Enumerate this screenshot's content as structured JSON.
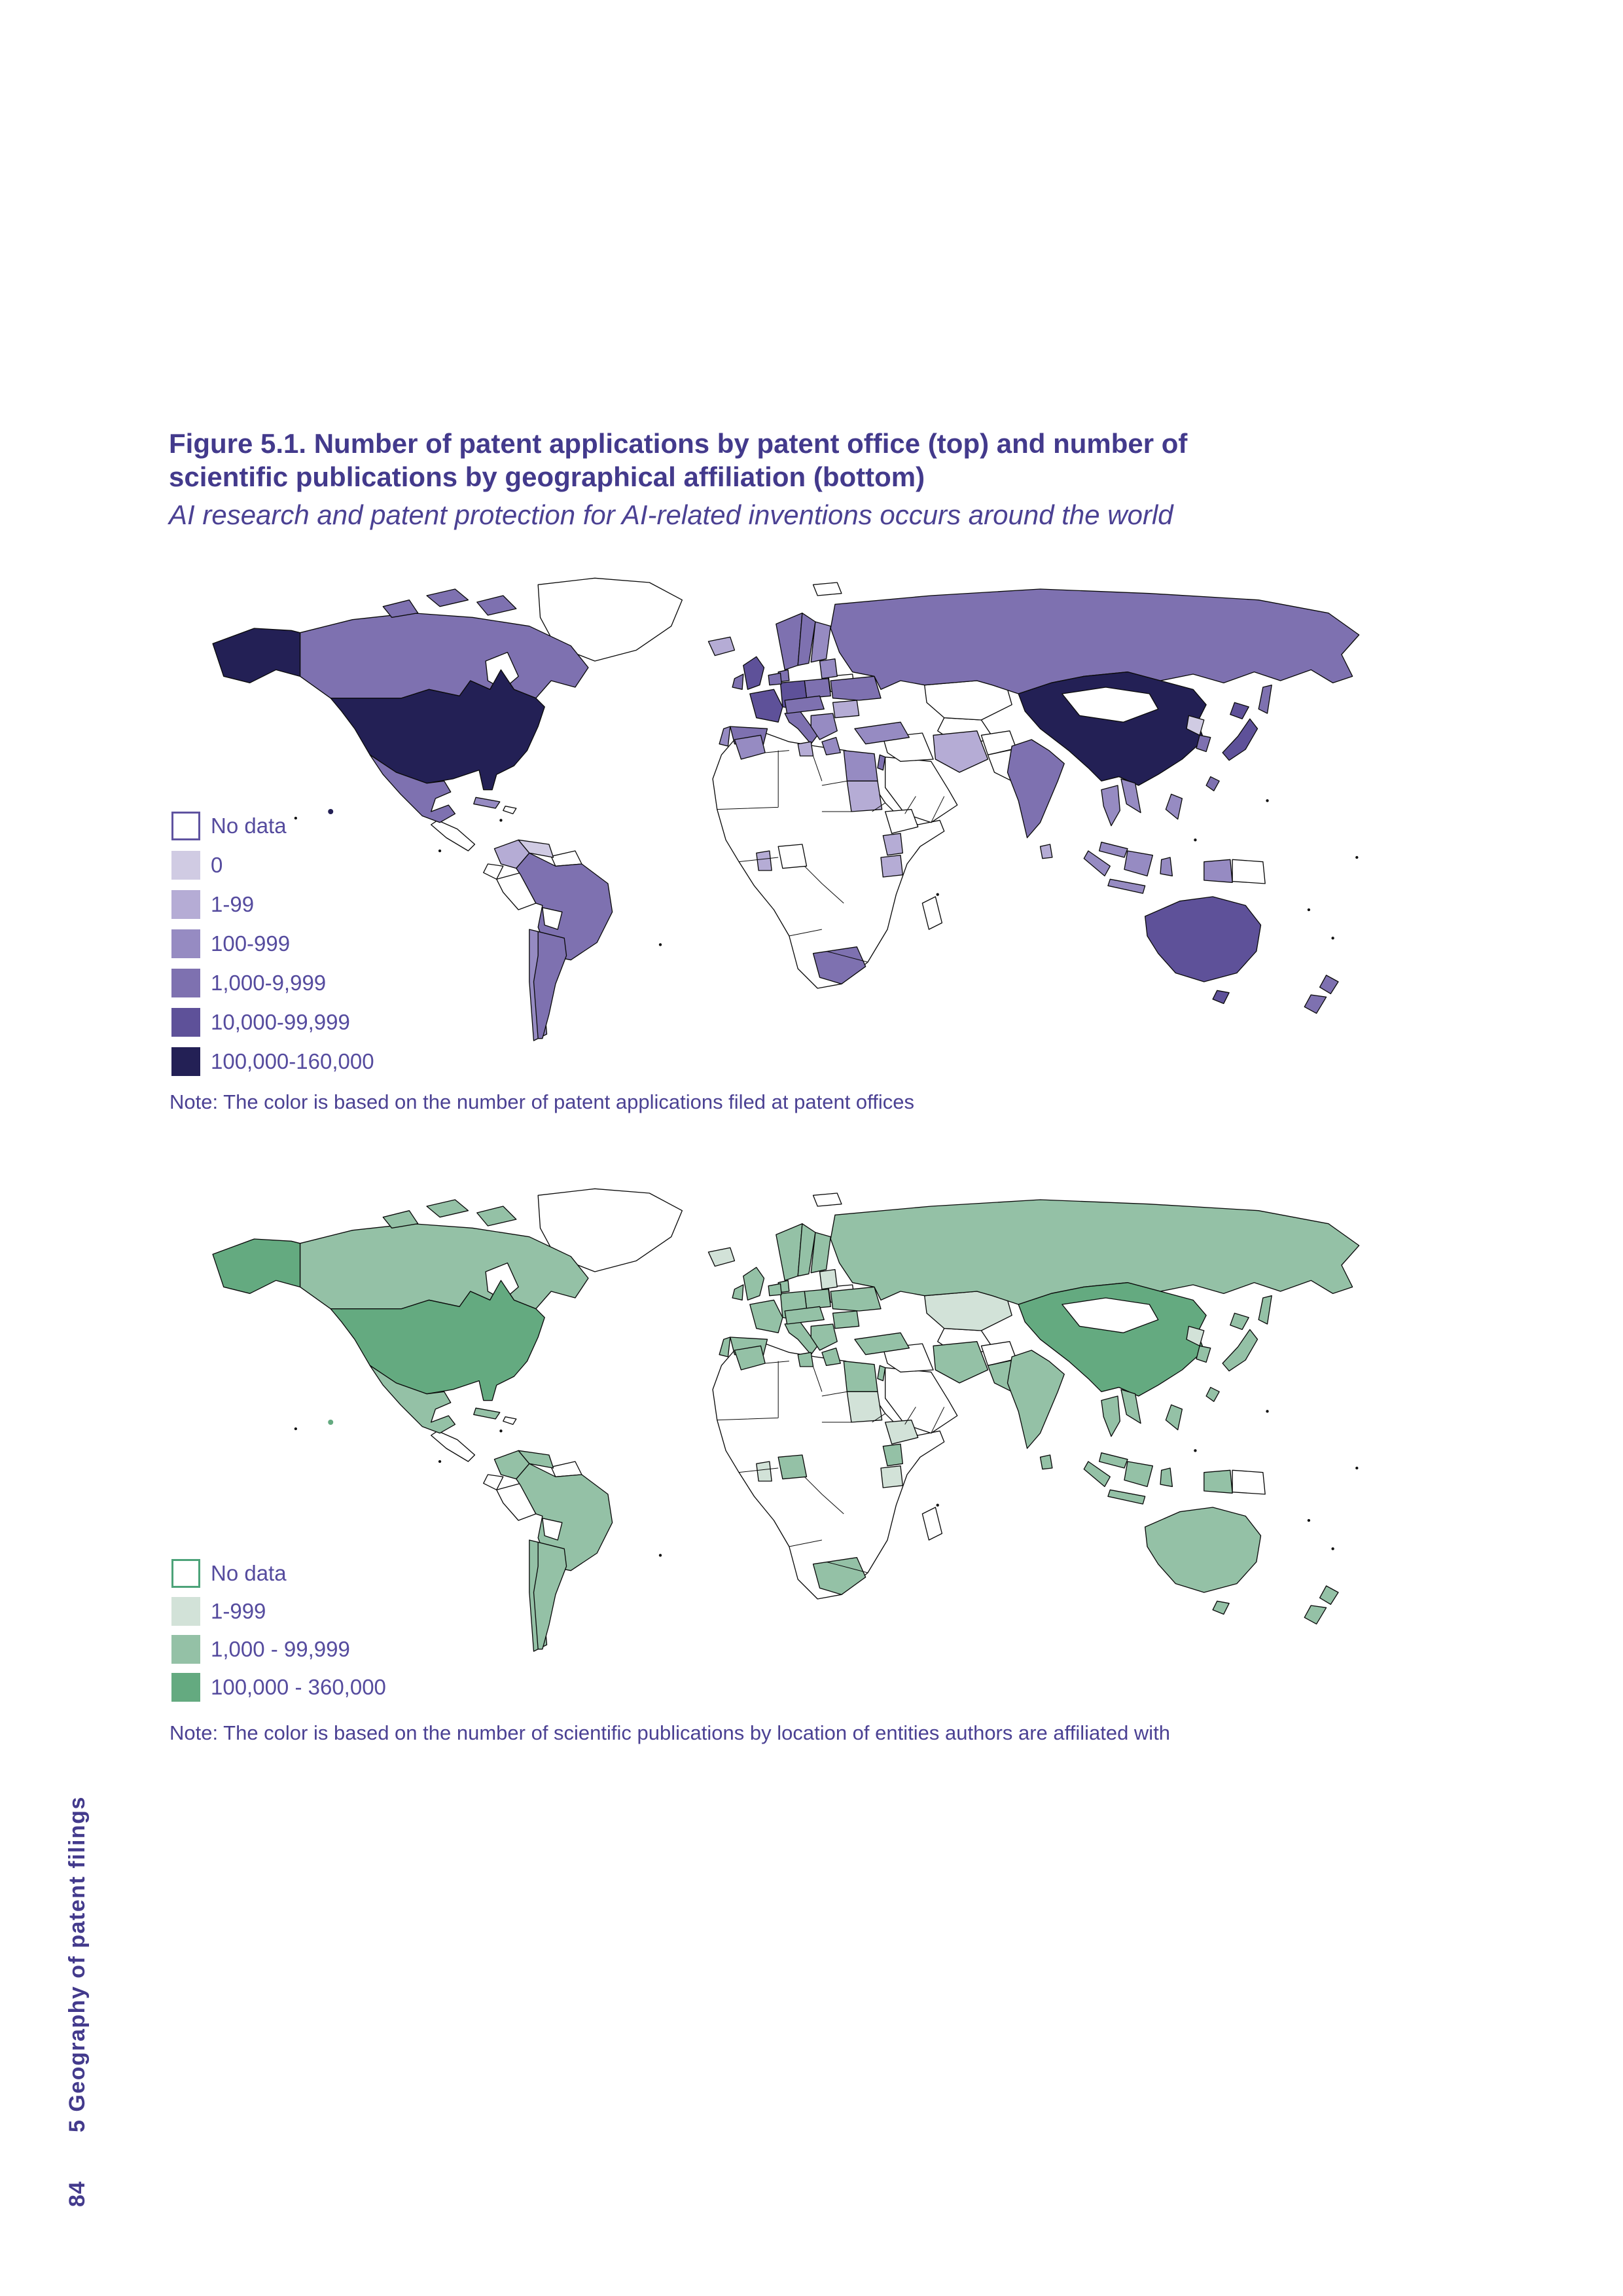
{
  "page": {
    "title": "Figure 5.1. Number of patent applications by patent office (top) and number of scientific publications by geographical affiliation (bottom)",
    "subtitle": "AI research and patent protection for AI-related inventions occurs around the world",
    "sidebar_label": "5 Geography of patent filings",
    "page_number": "84"
  },
  "chart_data": [
    {
      "type": "choropleth",
      "title": "Number of patent applications by patent office (top)",
      "note": "Note: The color is based on the number of patent applications filed at patent offices",
      "legend_position": "bottom-left",
      "legend": [
        {
          "label": "No data",
          "color": "#ffffff",
          "border": "#5f53a0"
        },
        {
          "label": "0",
          "color": "#d0cbe3"
        },
        {
          "label": "1-99",
          "color": "#b5acd5"
        },
        {
          "label": "100-999",
          "color": "#968bc2"
        },
        {
          "label": "1,000-9,999",
          "color": "#7e71b0"
        },
        {
          "label": "10,000-99,999",
          "color": "#5e5199"
        },
        {
          "label": "100,000-160,000",
          "color": "#232055"
        }
      ],
      "regions": {
        "usa": "100,000-160,000",
        "china": "100,000-160,000",
        "germany": "10,000-99,999",
        "uk": "10,000-99,999",
        "france": "10,000-99,999",
        "japan": "10,000-99,999",
        "australia": "10,000-99,999",
        "canada": "1,000-9,999",
        "russia": "1,000-9,999",
        "mexico": "1,000-9,999",
        "brazil": "1,000-9,999",
        "argentina": "1,000-9,999",
        "india": "1,000-9,999",
        "south-korea": "1,000-9,999",
        "south-africa": "1,000-9,999",
        "spain": "1,000-9,999",
        "italy": "1,000-9,999",
        "netherlands": "1,000-9,999",
        "sweden": "1,000-9,999",
        "norway": "1,000-9,999",
        "denmark": "1,000-9,999",
        "central-europe": "1,000-9,999",
        "poland": "1,000-9,999",
        "ukraine": "1,000-9,999",
        "israel": "1,000-9,999",
        "new-zealand": "1,000-9,999",
        "taiwan": "1,000-9,999",
        "ireland": "1,000-9,999",
        "turkey": "100-999",
        "chile": "100-999",
        "morocco": "100-999",
        "egypt": "100-999",
        "finland": "100-999",
        "portugal": "100-999",
        "greece": "100-999",
        "balkans": "100-999",
        "baltics": "100-999",
        "thailand": "100-999",
        "vietnam": "100-999",
        "malaysia": "100-999",
        "indonesia": "100-999",
        "philippines": "100-999",
        "cuba": "100-999",
        "iceland": "1-99",
        "colombia": "1-99",
        "sudan": "1-99",
        "kenya": "1-99",
        "tanzania": "1-99",
        "ghana": "1-99",
        "sri-lanka": "1-99",
        "tunisia": "1-99",
        "iran": "1-99",
        "romania": "1-99",
        "venezuela": "0",
        "north-korea": "0"
      }
    },
    {
      "type": "choropleth",
      "title": "Number of scientific publications by geographical affiliation (bottom)",
      "note": "Note: The color is based on the number of scientific publications by location of entities authors are affiliated with",
      "legend_position": "bottom-left",
      "legend": [
        {
          "label": "No data",
          "color": "#ffffff",
          "border": "#4da379"
        },
        {
          "label": "1-999",
          "color": "#d2e2d8"
        },
        {
          "label": "1,000 - 99,999",
          "color": "#94c1a6"
        },
        {
          "label": "100,000 - 360,000",
          "color": "#64aa80"
        }
      ],
      "regions": {
        "usa": "100,000 - 360,000",
        "china": "100,000 - 360,000",
        "canada": "1,000 - 99,999",
        "russia": "1,000 - 99,999",
        "mexico": "1,000 - 99,999",
        "brazil": "1,000 - 99,999",
        "argentina": "1,000 - 99,999",
        "chile": "1,000 - 99,999",
        "colombia": "1,000 - 99,999",
        "venezuela": "1,000 - 99,999",
        "cuba": "1,000 - 99,999",
        "uk": "1,000 - 99,999",
        "ireland": "1,000 - 99,999",
        "france": "1,000 - 99,999",
        "spain": "1,000 - 99,999",
        "portugal": "1,000 - 99,999",
        "germany": "1,000 - 99,999",
        "italy": "1,000 - 99,999",
        "netherlands": "1,000 - 99,999",
        "sweden": "1,000 - 99,999",
        "norway": "1,000 - 99,999",
        "denmark": "1,000 - 99,999",
        "finland": "1,000 - 99,999",
        "central-europe": "1,000 - 99,999",
        "poland": "1,000 - 99,999",
        "ukraine": "1,000 - 99,999",
        "balkans": "1,000 - 99,999",
        "greece": "1,000 - 99,999",
        "romania": "1,000 - 99,999",
        "turkey": "1,000 - 99,999",
        "iran": "1,000 - 99,999",
        "israel": "1,000 - 99,999",
        "egypt": "1,000 - 99,999",
        "morocco": "1,000 - 99,999",
        "tunisia": "1,000 - 99,999",
        "south-africa": "1,000 - 99,999",
        "nigeria": "1,000 - 99,999",
        "kenya": "1,000 - 99,999",
        "india": "1,000 - 99,999",
        "pakistan": "1,000 - 99,999",
        "sri-lanka": "1,000 - 99,999",
        "thailand": "1,000 - 99,999",
        "vietnam": "1,000 - 99,999",
        "malaysia": "1,000 - 99,999",
        "indonesia": "1,000 - 99,999",
        "philippines": "1,000 - 99,999",
        "japan": "1,000 - 99,999",
        "south-korea": "1,000 - 99,999",
        "taiwan": "1,000 - 99,999",
        "australia": "1,000 - 99,999",
        "new-zealand": "1,000 - 99,999",
        "iceland": "1-999",
        "kazakhstan": "1-999",
        "sudan": "1-999",
        "ethiopia": "1-999",
        "ghana": "1-999",
        "north-korea": "1-999",
        "baltics": "1-999",
        "tanzania": "1-999"
      }
    }
  ]
}
